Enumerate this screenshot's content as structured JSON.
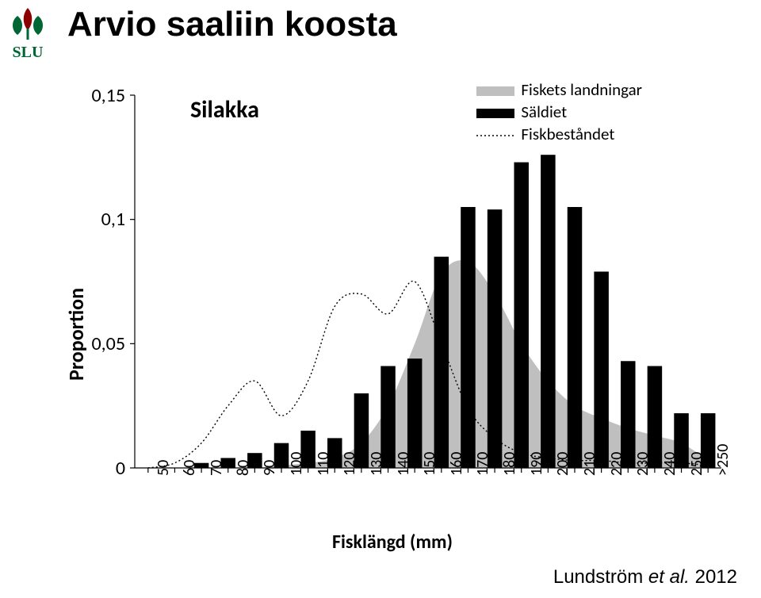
{
  "page": {
    "title": "Arvio saaliin koosta",
    "title_fontsize": 44,
    "title_color": "#000000",
    "credit_prefix": "Lundström ",
    "credit_em": "et al.",
    "credit_suffix": " 2012",
    "credit_fontsize": 24
  },
  "logo": {
    "text": "SLU",
    "text_color": "#006633",
    "leaf_green": "#006633",
    "leaf_red": "#8b0000"
  },
  "chart": {
    "type": "bar+area+line",
    "series_label": "Silakka",
    "series_label_fontsize": 30,
    "ylabel": "Proportion",
    "ylabel_fontsize": 26,
    "xlabel": "Fisklängd (mm)",
    "xlabel_fontsize": 24,
    "background_color": "#ffffff",
    "axis_color": "#000000",
    "axis_width": 1.2,
    "ylim": [
      0,
      0.15
    ],
    "yticks": [
      0,
      0.05,
      0.1,
      0.15
    ],
    "ytick_labels": [
      "0",
      "0,05",
      "0,1",
      "0,15"
    ],
    "ytick_fontsize": 24,
    "categories": [
      "50",
      "60",
      "70",
      "80",
      "90",
      "100",
      "110",
      "120",
      "130",
      "140",
      "150",
      "160",
      "170",
      "180",
      "190",
      "200",
      "210",
      "220",
      "230",
      "240",
      "250",
      ">250"
    ],
    "xtick_fontsize": 20,
    "legend": {
      "items": [
        {
          "label": "Fiskets landningar",
          "swatch": "area",
          "color": "#bfbfbf"
        },
        {
          "label": "Säldiet",
          "swatch": "bar",
          "color": "#000000"
        },
        {
          "label": "Fiskbeståndet",
          "swatch": "dotted",
          "color": "#000000"
        }
      ],
      "fontsize": 21
    },
    "area": {
      "color": "#bfbfbf",
      "values": [
        0,
        0,
        0,
        0,
        0,
        0.001,
        0.002,
        0.004,
        0.01,
        0.025,
        0.05,
        0.078,
        0.083,
        0.07,
        0.05,
        0.035,
        0.025,
        0.02,
        0.016,
        0.013,
        0.01,
        0.003
      ]
    },
    "bars": {
      "color": "#000000",
      "width": 0.55,
      "values": [
        0,
        0,
        0.002,
        0.004,
        0.006,
        0.01,
        0.015,
        0.012,
        0.03,
        0.041,
        0.044,
        0.085,
        0.105,
        0.104,
        0.123,
        0.126,
        0.105,
        0.079,
        0.043,
        0.041,
        0.022,
        0.022
      ]
    },
    "dotted": {
      "color": "#000000",
      "dash": "2,3",
      "width": 1.4,
      "values": [
        0.0,
        0.002,
        0.01,
        0.025,
        0.035,
        0.021,
        0.035,
        0.065,
        0.07,
        0.062,
        0.075,
        0.05,
        0.024,
        0.012,
        0.006,
        0.004,
        0.003,
        0.003,
        0.002,
        0.002,
        0.002,
        0.001
      ]
    }
  }
}
